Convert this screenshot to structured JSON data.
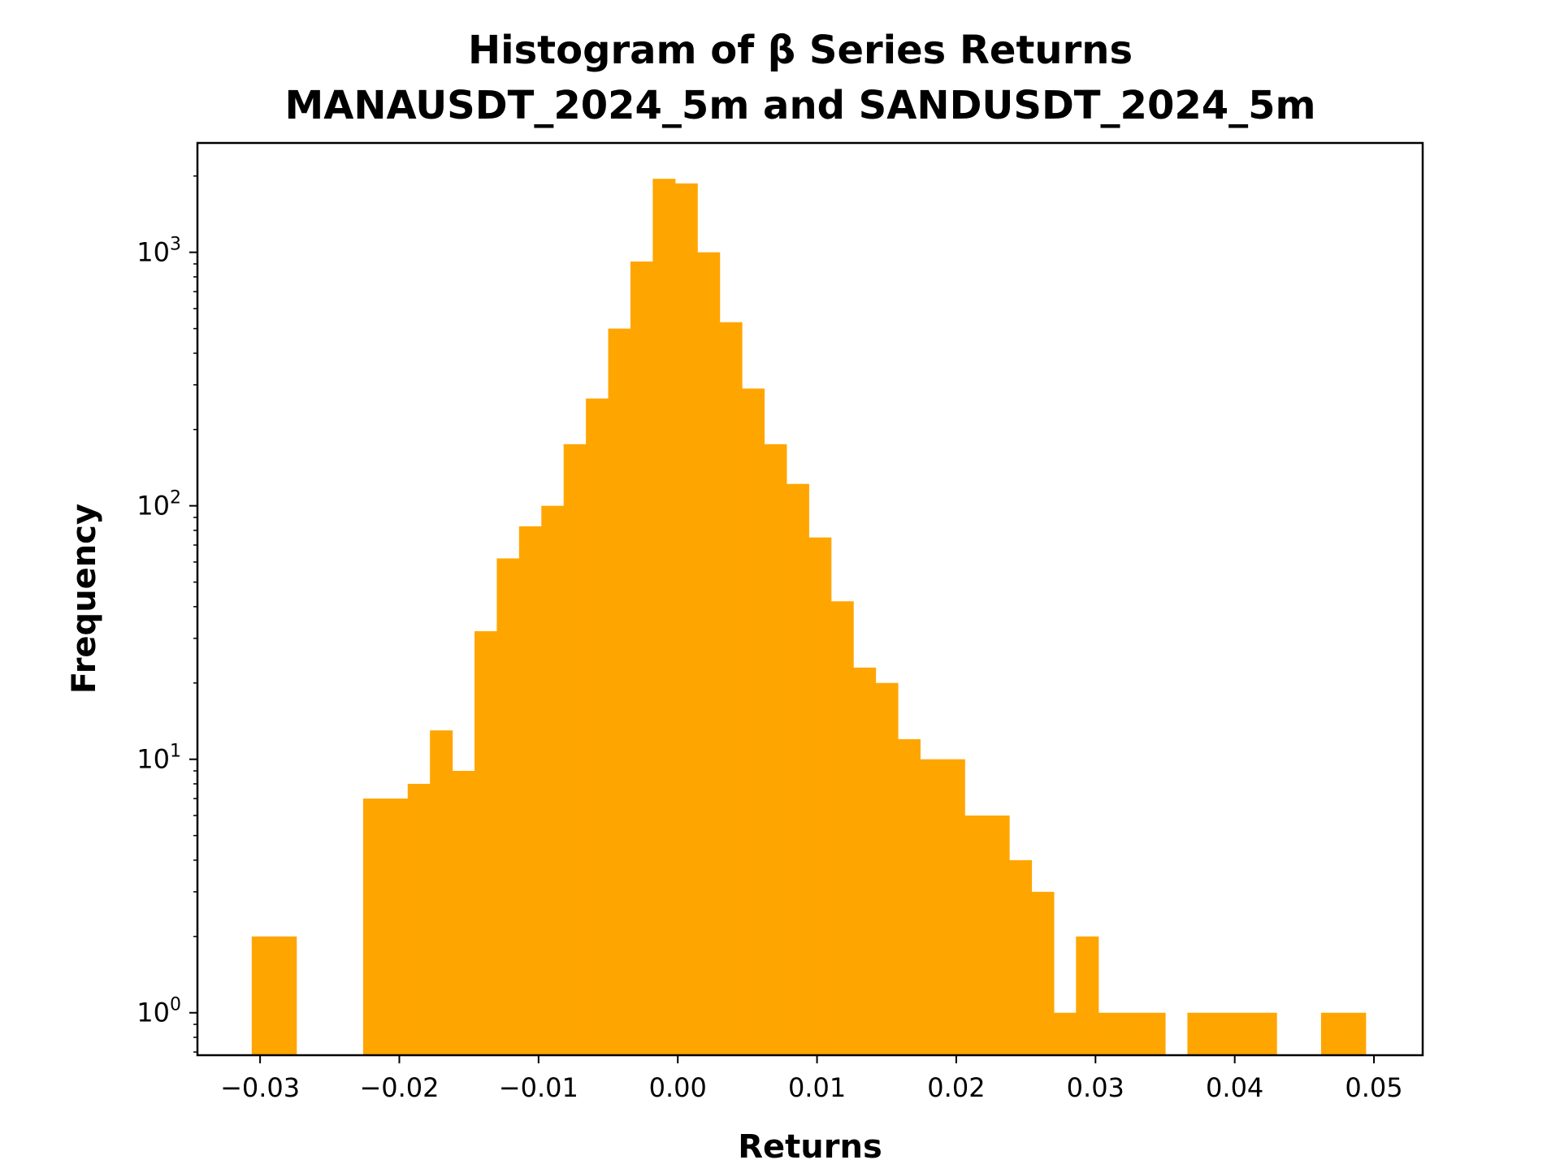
{
  "chart_data": {
    "type": "bar",
    "title_line1": "Histogram of β Series Returns",
    "title_line2": "MANAUSDT_2024_5m and SANDUSDT_2024_5m",
    "xlabel": "Returns",
    "ylabel": "Frequency",
    "yscale": "log",
    "color": "#ffa500",
    "xlim": [
      -0.0345,
      0.0535
    ],
    "ylim": [
      0.68,
      2700
    ],
    "xticks": [
      -0.03,
      -0.02,
      -0.01,
      0.0,
      0.01,
      0.02,
      0.03,
      0.04,
      0.05
    ],
    "xtick_labels": [
      "−0.03",
      "−0.02",
      "−0.01",
      "0.00",
      "0.01",
      "0.02",
      "0.03",
      "0.04",
      "0.05"
    ],
    "yticks": [
      {
        "value": 1,
        "base": "10",
        "exp": "0"
      },
      {
        "value": 10,
        "base": "10",
        "exp": "1"
      },
      {
        "value": 100,
        "base": "10",
        "exp": "2"
      },
      {
        "value": 1000,
        "base": "10",
        "exp": "3"
      }
    ],
    "grid": false,
    "bins": {
      "start": -0.0306,
      "width": 0.0016,
      "counts": [
        2,
        2,
        0,
        0,
        0,
        7,
        7,
        8,
        13,
        9,
        32,
        62,
        83,
        100,
        175,
        265,
        500,
        920,
        1950,
        1870,
        1000,
        530,
        290,
        175,
        122,
        75,
        42,
        23,
        20,
        12,
        10,
        10,
        6,
        6,
        4,
        3,
        1,
        2,
        1,
        1,
        1,
        0,
        1,
        1,
        1,
        1,
        0,
        0,
        1,
        1
      ]
    }
  }
}
